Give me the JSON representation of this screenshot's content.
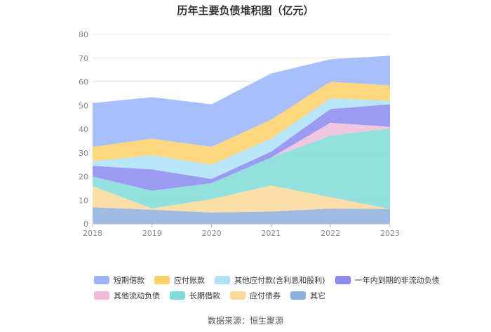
{
  "title": "历年主要负债堆积图（亿元）",
  "source": "数据来源：恒生聚源",
  "chart_data": {
    "type": "area",
    "stacked": true,
    "x": [
      "2018",
      "2019",
      "2020",
      "2021",
      "2022",
      "2023"
    ],
    "ylim": [
      0,
      80
    ],
    "yticks": [
      "0",
      "10",
      "20",
      "30",
      "40",
      "50",
      "60",
      "70",
      "80"
    ],
    "grid": true,
    "legend_position": "bottom",
    "series": [
      {
        "name": "其它",
        "color": "#8eaede",
        "values": [
          7.0,
          6.0,
          4.8,
          5.2,
          6.5,
          6.3
        ]
      },
      {
        "name": "应付债券",
        "color": "#fcd89a",
        "values": [
          9.0,
          0.5,
          5.7,
          11.0,
          4.8,
          0.0
        ]
      },
      {
        "name": "长期借款",
        "color": "#7fdcd8",
        "values": [
          4.0,
          7.5,
          6.7,
          11.8,
          26.0,
          34.0
        ]
      },
      {
        "name": "其他流动负债",
        "color": "#efbdda",
        "values": [
          0.0,
          0.0,
          0.0,
          0.0,
          5.4,
          0.7
        ]
      },
      {
        "name": "一年内到期的非流动负债",
        "color": "#8a8af2",
        "values": [
          4.5,
          9.0,
          1.8,
          2.5,
          5.8,
          9.5
        ]
      },
      {
        "name": "其他应付款(含利息和股利)",
        "color": "#aee2f8",
        "values": [
          2.0,
          6.0,
          6.0,
          5.5,
          4.5,
          1.5
        ]
      },
      {
        "name": "应付账款",
        "color": "#fed068",
        "values": [
          6.0,
          7.0,
          7.5,
          8.0,
          7.0,
          6.5
        ]
      },
      {
        "name": "短期借款",
        "color": "#99b4fb",
        "values": [
          18.5,
          17.5,
          18.0,
          19.5,
          9.5,
          12.5
        ]
      }
    ]
  }
}
